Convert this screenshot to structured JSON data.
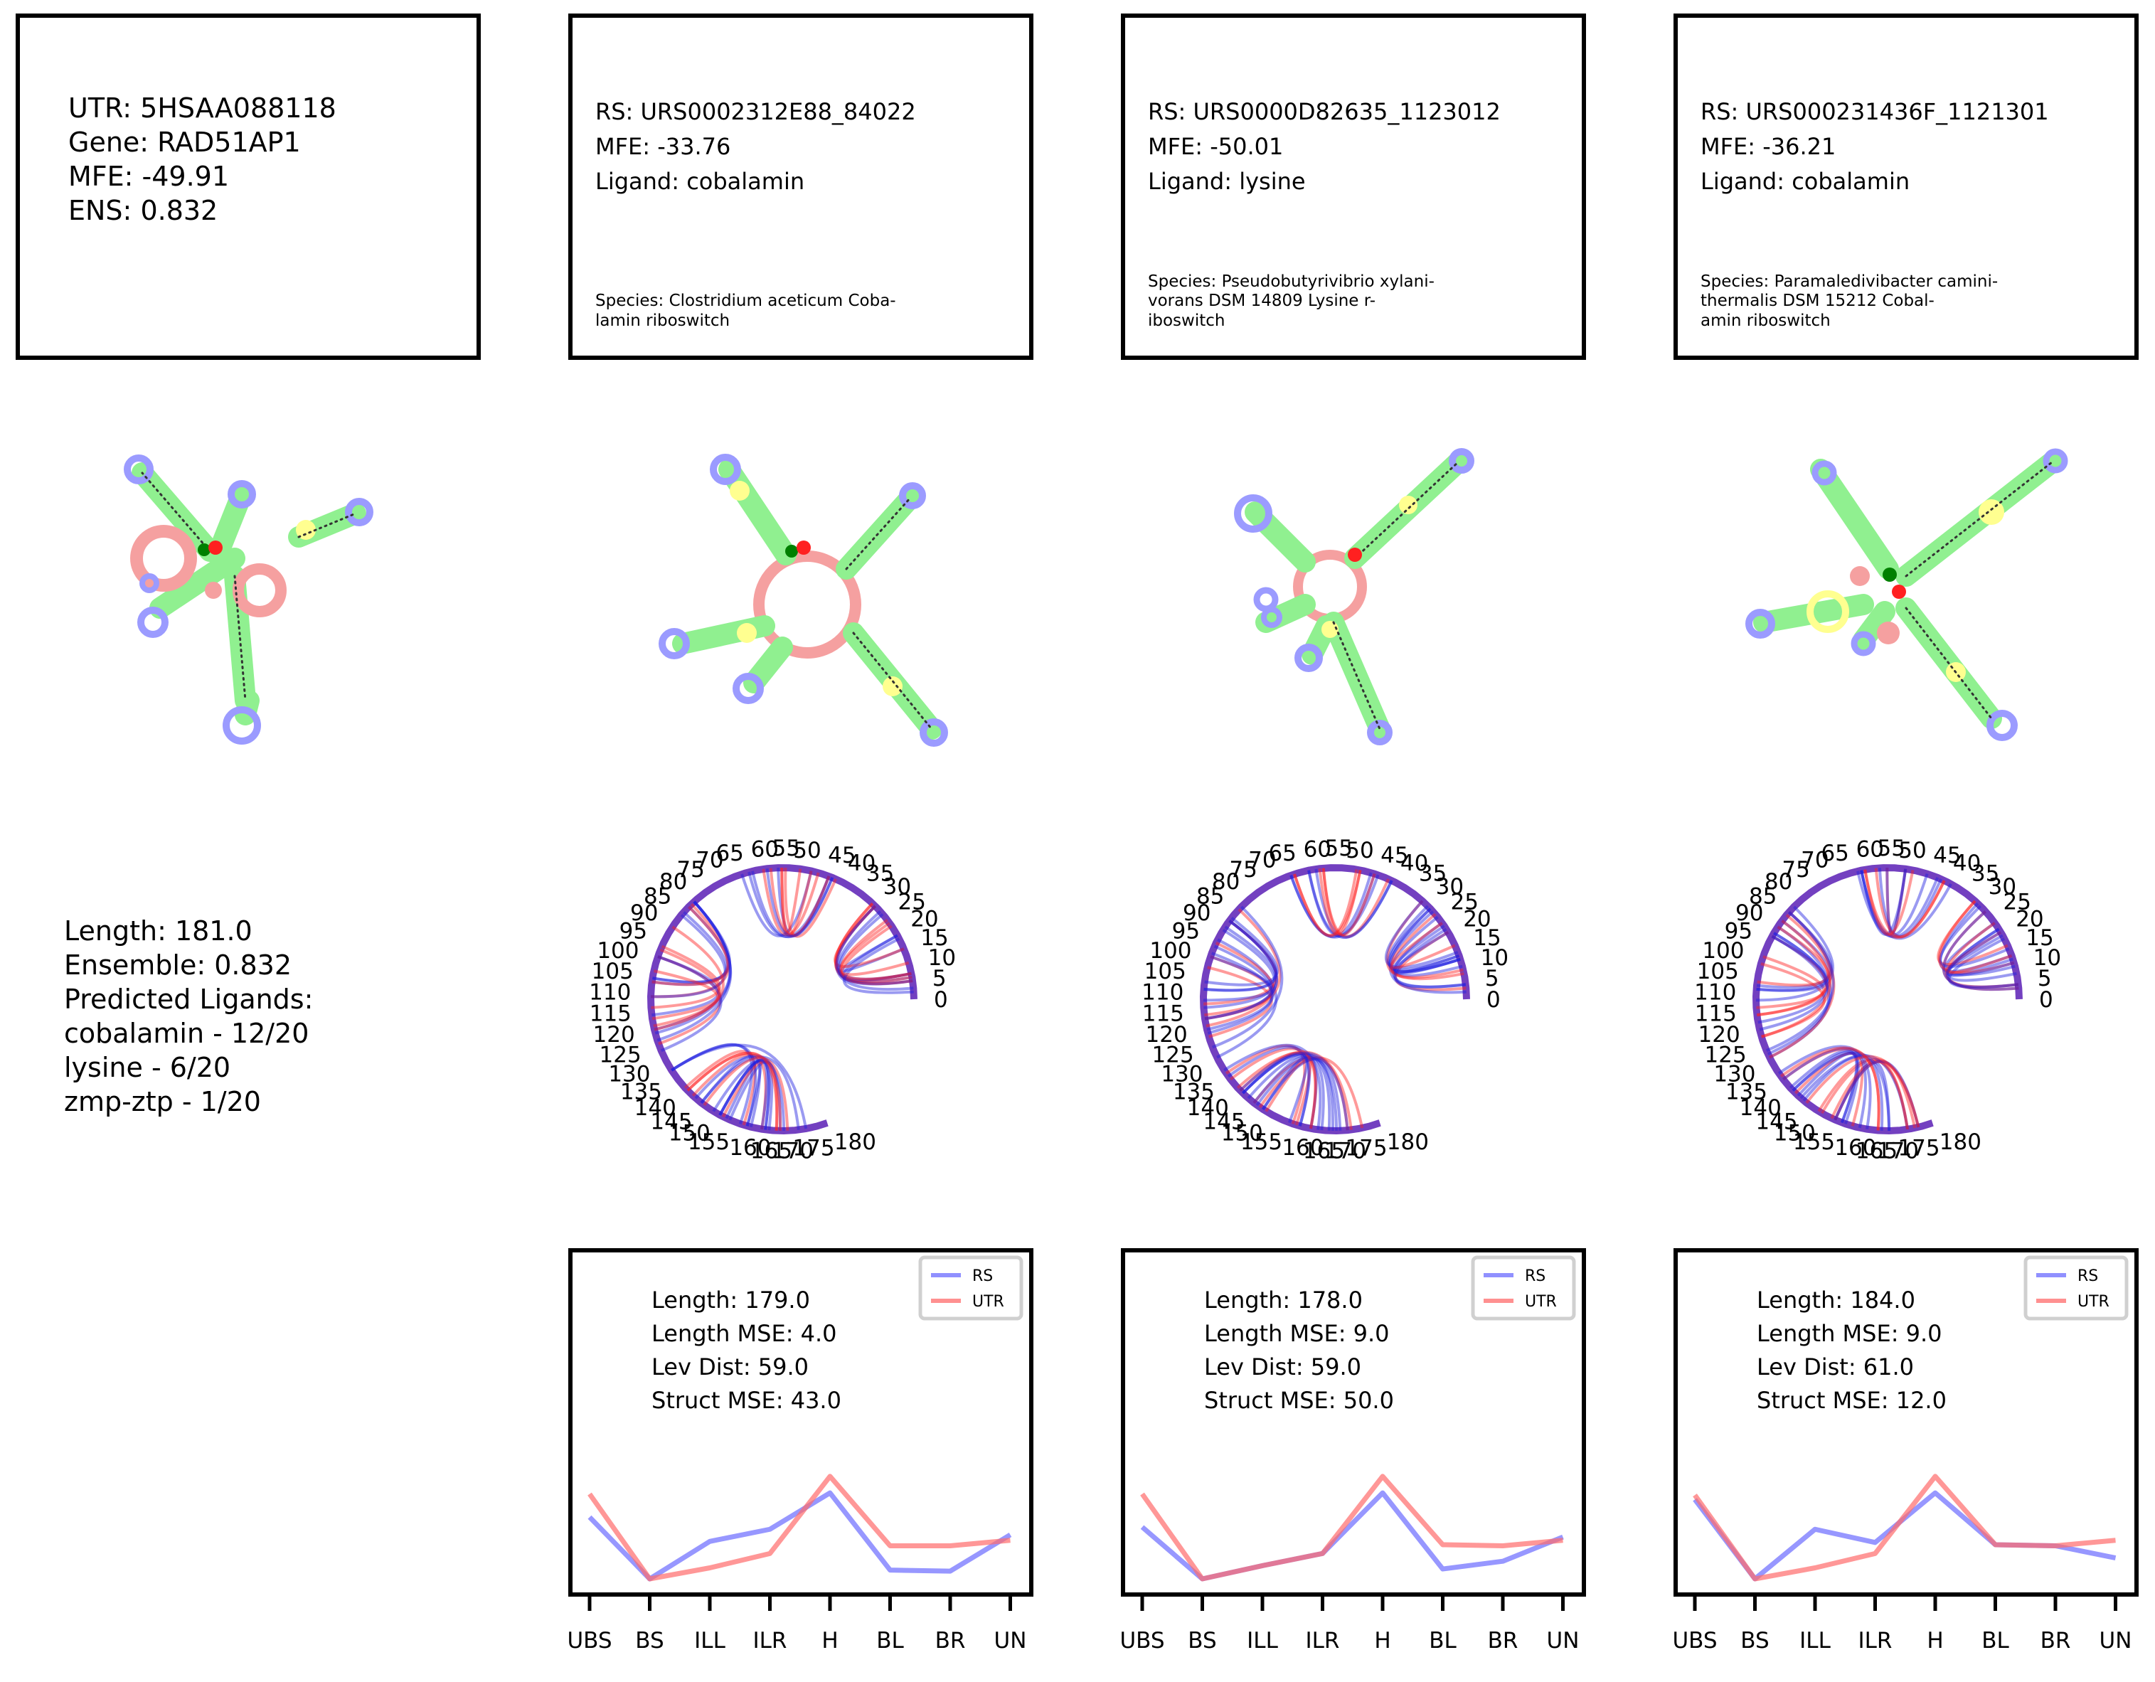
{
  "colors": {
    "rs": "#6b6bff",
    "utr": "#ff6b6b",
    "chord_blue": "#2020e0",
    "chord_red": "#ff2020"
  },
  "utr_panel": {
    "utr_line": "UTR: 5HSAA088118",
    "gene_line": "Gene: RAD51AP1",
    "mfe_line": "MFE: -49.91",
    "ens_line": "ENS: 0.832",
    "summary_lines": [
      "Length: 181.0",
      "Ensemble: 0.832",
      "Predicted Ligands:",
      "cobalamin - 12/20",
      "lysine - 6/20",
      "zmp-ztp - 1/20"
    ]
  },
  "rs_panels": [
    {
      "rs_line": "RS: URS0002312E88_84022",
      "mfe_line": "MFE: -33.76",
      "ligand_line": "Ligand: cobalamin",
      "species_lines": [
        "Species: Clostridium aceticum Coba-",
        "lamin riboswitch"
      ],
      "stats": [
        "Length: 179.0",
        "Length MSE: 4.0",
        "Lev Dist: 59.0",
        "Struct MSE: 43.0"
      ]
    },
    {
      "rs_line": "RS: URS0000D82635_1123012",
      "mfe_line": "MFE: -50.01",
      "ligand_line": "Ligand: lysine",
      "species_lines": [
        "Species: Pseudobutyrivibrio xylani-",
        "vorans DSM 14809 Lysine r-",
        "iboswitch"
      ],
      "stats": [
        "Length: 178.0",
        "Length MSE: 9.0",
        "Lev Dist: 59.0",
        "Struct MSE: 50.0"
      ]
    },
    {
      "rs_line": "RS: URS000231436F_1121301",
      "mfe_line": "MFE: -36.21",
      "ligand_line": "Ligand: cobalamin",
      "species_lines": [
        "Species: Paramaledivibacter camini-",
        "thermalis DSM 15212 Cobal-",
        "amin riboswitch"
      ],
      "stats": [
        "Length: 184.0",
        "Length MSE: 9.0",
        "Lev Dist: 61.0",
        "Struct MSE: 12.0"
      ]
    }
  ],
  "chart_data": [
    {
      "type": "line",
      "categories": [
        "UBS",
        "BS",
        "ILL",
        "ILR",
        "H",
        "BL",
        "BR",
        "UN"
      ],
      "series": [
        {
          "name": "RS",
          "values": [
            0.56,
            0.0,
            0.34,
            0.45,
            0.78,
            0.08,
            0.07,
            0.4
          ]
        },
        {
          "name": "UTR",
          "values": [
            0.77,
            0.0,
            0.1,
            0.23,
            0.93,
            0.3,
            0.3,
            0.35
          ]
        }
      ],
      "ylim": [
        0,
        1
      ],
      "legend": "top-right"
    },
    {
      "type": "line",
      "categories": [
        "UBS",
        "BS",
        "ILL",
        "ILR",
        "H",
        "BL",
        "BR",
        "UN"
      ],
      "series": [
        {
          "name": "RS",
          "values": [
            0.47,
            0.0,
            0.12,
            0.23,
            0.78,
            0.09,
            0.16,
            0.38
          ]
        },
        {
          "name": "UTR",
          "values": [
            0.77,
            0.0,
            0.12,
            0.23,
            0.93,
            0.31,
            0.3,
            0.35
          ]
        }
      ],
      "ylim": [
        0,
        1
      ],
      "legend": "top-right"
    },
    {
      "type": "line",
      "categories": [
        "UBS",
        "BS",
        "ILL",
        "ILR",
        "H",
        "BL",
        "BR",
        "UN"
      ],
      "series": [
        {
          "name": "RS",
          "values": [
            0.72,
            0.0,
            0.45,
            0.33,
            0.78,
            0.31,
            0.3,
            0.19
          ]
        },
        {
          "name": "UTR",
          "values": [
            0.76,
            0.0,
            0.1,
            0.23,
            0.93,
            0.31,
            0.3,
            0.35
          ]
        }
      ],
      "ylim": [
        0,
        1
      ],
      "legend": "top-right"
    }
  ],
  "circos": {
    "length": 181,
    "tick_labels": [
      "0",
      "5",
      "10",
      "15",
      "20",
      "25",
      "30",
      "35",
      "40",
      "45",
      "50",
      "55",
      "60",
      "65",
      "70",
      "75",
      "80",
      "85",
      "90",
      "95",
      "100",
      "105",
      "110",
      "115",
      "120",
      "125",
      "130",
      "135",
      "140",
      "145",
      "150",
      "155",
      "160",
      "165",
      "170",
      "175",
      "180"
    ]
  }
}
